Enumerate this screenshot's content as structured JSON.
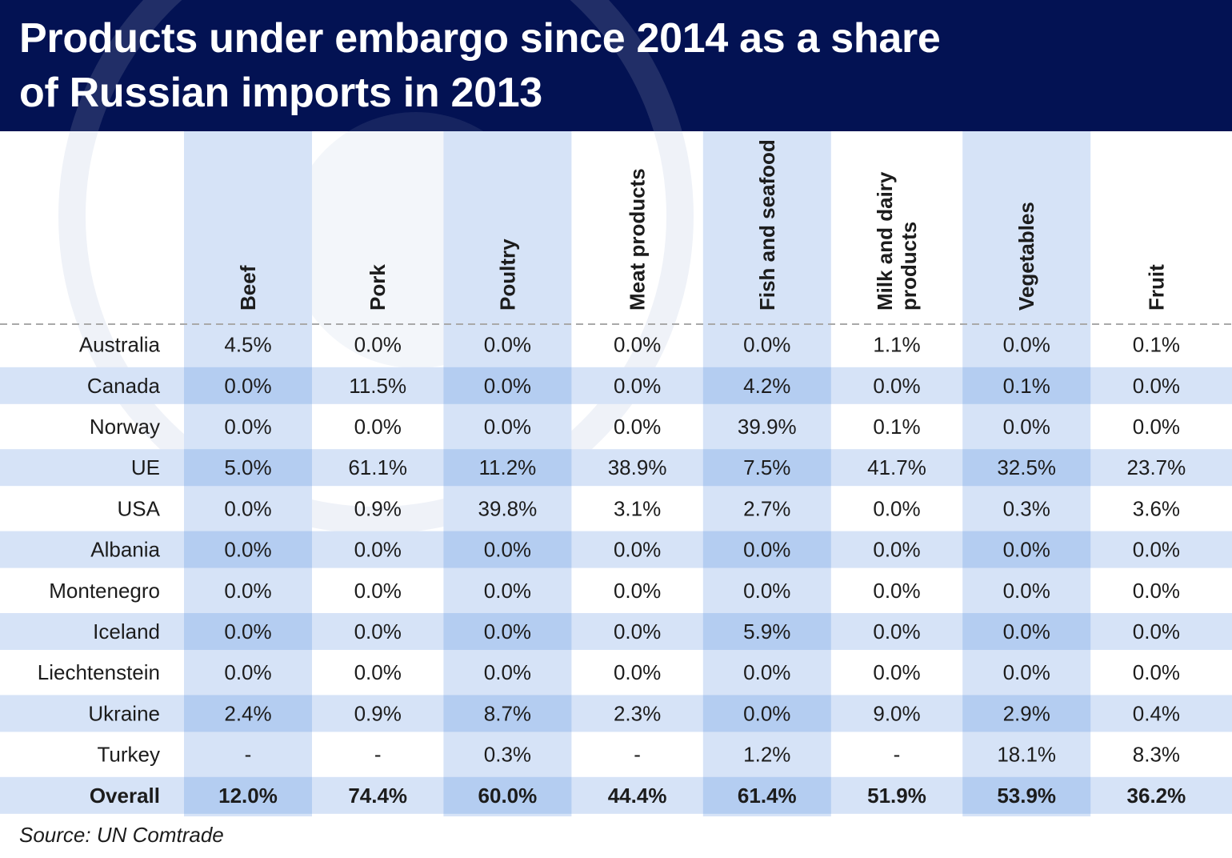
{
  "title": "Products under embargo since 2014 as a share\nof Russian imports in 2013",
  "source": "Source: UN Comtrade",
  "colors": {
    "header_bg": "#031253",
    "column_band": "#d6e3f7",
    "row_band": "#d6e3f7",
    "intersection": "#b4cdf1",
    "text": "#1c1c1c"
  },
  "chart_data": {
    "type": "table",
    "columns": [
      "Beef",
      "Pork",
      "Poultry",
      "Meat products",
      "Fish and seafood",
      "Milk and dairy products",
      "Vegetables",
      "Fruit"
    ],
    "rows": [
      {
        "label": "Australia",
        "values": [
          "4.5%",
          "0.0%",
          "0.0%",
          "0.0%",
          "0.0%",
          "1.1%",
          "0.0%",
          "0.1%"
        ]
      },
      {
        "label": "Canada",
        "values": [
          "0.0%",
          "11.5%",
          "0.0%",
          "0.0%",
          "4.2%",
          "0.0%",
          "0.1%",
          "0.0%"
        ]
      },
      {
        "label": "Norway",
        "values": [
          "0.0%",
          "0.0%",
          "0.0%",
          "0.0%",
          "39.9%",
          "0.1%",
          "0.0%",
          "0.0%"
        ]
      },
      {
        "label": "UE",
        "values": [
          "5.0%",
          "61.1%",
          "11.2%",
          "38.9%",
          "7.5%",
          "41.7%",
          "32.5%",
          "23.7%"
        ]
      },
      {
        "label": "USA",
        "values": [
          "0.0%",
          "0.9%",
          "39.8%",
          "3.1%",
          "2.7%",
          "0.0%",
          "0.3%",
          "3.6%"
        ]
      },
      {
        "label": "Albania",
        "values": [
          "0.0%",
          "0.0%",
          "0.0%",
          "0.0%",
          "0.0%",
          "0.0%",
          "0.0%",
          "0.0%"
        ]
      },
      {
        "label": "Montenegro",
        "values": [
          "0.0%",
          "0.0%",
          "0.0%",
          "0.0%",
          "0.0%",
          "0.0%",
          "0.0%",
          "0.0%"
        ]
      },
      {
        "label": "Iceland",
        "values": [
          "0.0%",
          "0.0%",
          "0.0%",
          "0.0%",
          "5.9%",
          "0.0%",
          "0.0%",
          "0.0%"
        ]
      },
      {
        "label": "Liechtenstein",
        "values": [
          "0.0%",
          "0.0%",
          "0.0%",
          "0.0%",
          "0.0%",
          "0.0%",
          "0.0%",
          "0.0%"
        ]
      },
      {
        "label": "Ukraine",
        "values": [
          "2.4%",
          "0.9%",
          "8.7%",
          "2.3%",
          "0.0%",
          "9.0%",
          "2.9%",
          "0.4%"
        ]
      },
      {
        "label": "Turkey",
        "values": [
          "-",
          "-",
          "0.3%",
          "-",
          "1.2%",
          "-",
          "18.1%",
          "8.3%"
        ]
      },
      {
        "label": "Overall",
        "values": [
          "12.0%",
          "74.4%",
          "60.0%",
          "44.4%",
          "61.4%",
          "51.9%",
          "53.9%",
          "36.2%"
        ],
        "bold": true
      }
    ]
  }
}
